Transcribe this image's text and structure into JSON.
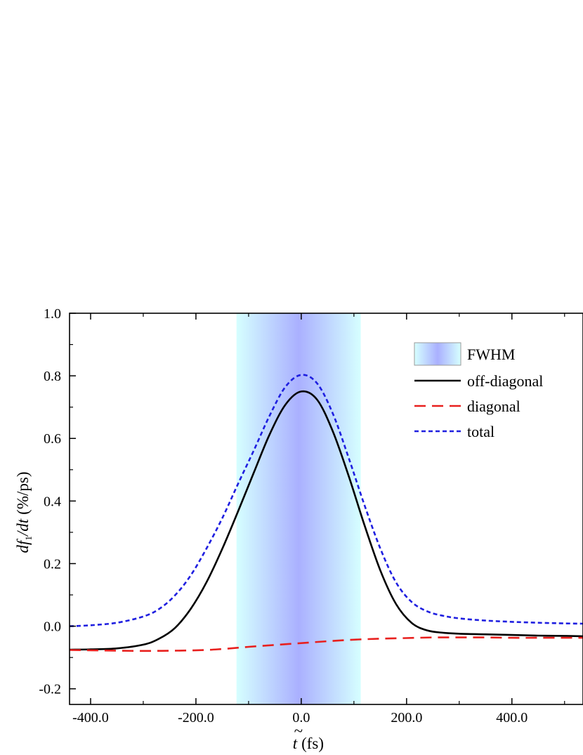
{
  "chart_data": {
    "type": "line",
    "xlabel_main": "t",
    "xlabel_accent": "~",
    "xlabel_unit": "(fs)",
    "ylabel_d1": "d",
    "ylabel_f": "f",
    "ylabel_sub": "1",
    "ylabel_d2": "/dt",
    "ylabel_unit": "(%/ps)",
    "xlim": [
      -440,
      535
    ],
    "ylim": [
      -0.25,
      1.0
    ],
    "xticks": [
      -400,
      -200,
      0,
      200,
      400
    ],
    "xtick_labels": [
      "-400.0",
      "-200.0",
      "0.0",
      "200.0",
      "400.0"
    ],
    "yticks": [
      -0.2,
      0.0,
      0.2,
      0.4,
      0.6,
      0.8,
      1.0
    ],
    "ytick_labels": [
      "-0.2",
      "0.0",
      "0.2",
      "0.4",
      "0.6",
      "0.8",
      "1.0"
    ],
    "fwhm_band": {
      "label": "FWHM",
      "x_start": -123,
      "x_end": 113,
      "color_edge": "#d6ffff",
      "color_center": "#aab0ff"
    },
    "legend_position": "top-right",
    "series": [
      {
        "name": "off-diagonal",
        "color": "#000000",
        "style": "solid",
        "x": [
          -440,
          -400,
          -350,
          -300,
          -270,
          -240,
          -210,
          -180,
          -150,
          -120,
          -90,
          -60,
          -30,
          0,
          30,
          60,
          90,
          120,
          150,
          180,
          210,
          240,
          270,
          300,
          350,
          400,
          450,
          500,
          535
        ],
        "y": [
          -0.075,
          -0.074,
          -0.071,
          -0.059,
          -0.04,
          -0.006,
          0.055,
          0.14,
          0.247,
          0.367,
          0.491,
          0.613,
          0.708,
          0.75,
          0.724,
          0.622,
          0.48,
          0.323,
          0.179,
          0.071,
          0.01,
          -0.014,
          -0.021,
          -0.024,
          -0.026,
          -0.028,
          -0.03,
          -0.031,
          -0.032
        ]
      },
      {
        "name": "diagonal",
        "color": "#e8201e",
        "style": "dashed",
        "x": [
          -440,
          -400,
          -300,
          -200,
          -150,
          -100,
          -50,
          0,
          50,
          100,
          150,
          200,
          250,
          300,
          350,
          400,
          450,
          500,
          535
        ],
        "y": [
          -0.076,
          -0.077,
          -0.079,
          -0.077,
          -0.073,
          -0.066,
          -0.06,
          -0.054,
          -0.048,
          -0.043,
          -0.04,
          -0.038,
          -0.036,
          -0.036,
          -0.036,
          -0.037,
          -0.037,
          -0.037,
          -0.037
        ]
      },
      {
        "name": "total",
        "color": "#1f1fe0",
        "style": "dotted",
        "x": [
          -440,
          -400,
          -350,
          -300,
          -270,
          -240,
          -210,
          -180,
          -150,
          -120,
          -90,
          -60,
          -30,
          0,
          30,
          60,
          90,
          120,
          150,
          180,
          210,
          240,
          270,
          300,
          350,
          400,
          450,
          500,
          535
        ],
        "y": [
          0.0,
          0.003,
          0.011,
          0.031,
          0.055,
          0.098,
          0.162,
          0.248,
          0.345,
          0.455,
          0.562,
          0.673,
          0.765,
          0.803,
          0.776,
          0.679,
          0.538,
          0.387,
          0.249,
          0.14,
          0.077,
          0.047,
          0.033,
          0.025,
          0.018,
          0.014,
          0.011,
          0.009,
          0.008
        ]
      }
    ]
  }
}
